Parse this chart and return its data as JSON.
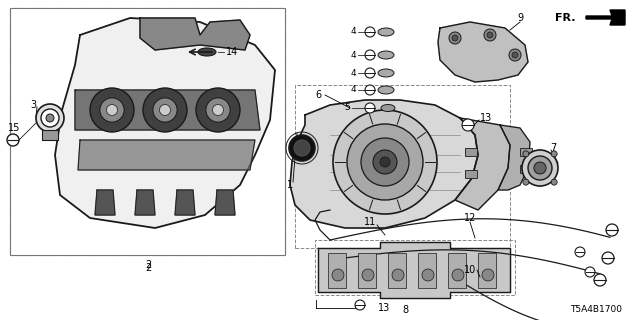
{
  "bg_color": "#ffffff",
  "diagram_code": "T5A4B1700",
  "line_color": "#1a1a1a",
  "gray_fill": "#c8c8c8",
  "dark_fill": "#555555",
  "light_fill": "#e8e8e8",
  "figsize": [
    6.4,
    3.2
  ],
  "dpi": 100,
  "xlim": [
    0,
    640
  ],
  "ylim": [
    0,
    320
  ]
}
